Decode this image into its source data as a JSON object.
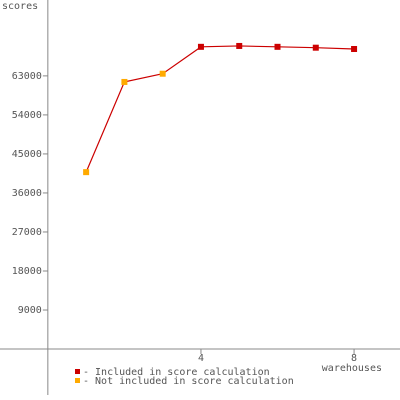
{
  "chart_data": {
    "type": "line",
    "y_label": "scores",
    "x_label": "warehouses",
    "x": [
      1,
      2,
      3,
      4,
      5,
      6,
      7,
      8
    ],
    "line_color": "#cc0000",
    "series": [
      {
        "name": "- Included in score calculation",
        "color": "#cc0000",
        "values": [
          null,
          null,
          null,
          69700,
          69900,
          69700,
          69500,
          69200
        ]
      },
      {
        "name": "- Not included in score calculation",
        "color": "#ffaa00",
        "values": [
          40800,
          61600,
          63500,
          null,
          null,
          null,
          null,
          null
        ]
      }
    ],
    "xlim": [
      -1.25,
      9.2
    ],
    "xticks": [
      4,
      8
    ],
    "ylim": [
      -10600,
      80500
    ],
    "yticks": [
      9000,
      18000,
      27000,
      36000,
      45000,
      54000,
      63000
    ]
  }
}
